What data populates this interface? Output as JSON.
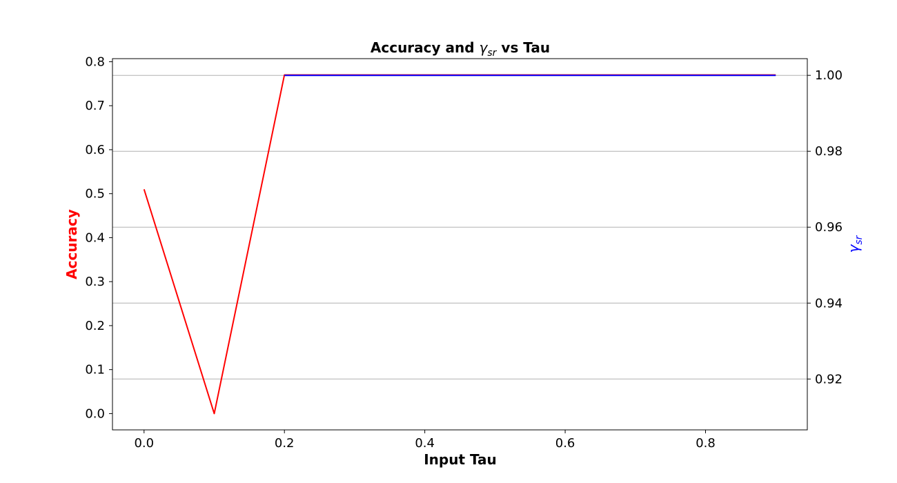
{
  "chart_data": {
    "type": "line",
    "title": "Accuracy and γsr vs Tau",
    "title_parts": {
      "prefix": "Accuracy and ",
      "symbol": "γ",
      "subscript": "sr",
      "suffix": " vs Tau"
    },
    "xlabel": "Input Tau",
    "ylabel_left": "Accuracy",
    "ylabel_right": {
      "symbol": "γ",
      "subscript": "sr"
    },
    "x": [
      0.0,
      0.1,
      0.2,
      0.3,
      0.4,
      0.5,
      0.6,
      0.7,
      0.8,
      0.9
    ],
    "series": [
      {
        "axis": "left",
        "color": "#ff0000",
        "values": [
          0.51,
          0.0,
          0.77,
          0.77,
          0.77,
          0.77,
          0.77,
          0.77,
          0.77,
          0.77
        ]
      },
      {
        "axis": "right",
        "color": "#0000ff",
        "values": [
          null,
          null,
          1.0,
          1.0,
          1.0,
          1.0,
          1.0,
          1.0,
          1.0,
          1.0
        ]
      }
    ],
    "xlim": [
      -0.045,
      0.945
    ],
    "ylim_left": [
      -0.037,
      0.807
    ],
    "ylim_right": [
      0.9066,
      1.0044
    ],
    "xticks": [
      0.0,
      0.2,
      0.4,
      0.6,
      0.8
    ],
    "xtick_labels": [
      "0.0",
      "0.2",
      "0.4",
      "0.6",
      "0.8"
    ],
    "yticks_left": [
      0.0,
      0.1,
      0.2,
      0.3,
      0.4,
      0.5,
      0.6,
      0.7,
      0.8
    ],
    "ytick_labels_left": [
      "0.0",
      "0.1",
      "0.2",
      "0.3",
      "0.4",
      "0.5",
      "0.6",
      "0.7",
      "0.8"
    ],
    "yticks_right": [
      0.92,
      0.94,
      0.96,
      0.98,
      1.0
    ],
    "ytick_labels_right": [
      "0.92",
      "0.94",
      "0.96",
      "0.98",
      "1.00"
    ],
    "grid": "right-axis horizontal",
    "colors": {
      "left_label": "#ff0000",
      "right_label": "#0000ff",
      "grid": "#b0b0b0"
    }
  }
}
